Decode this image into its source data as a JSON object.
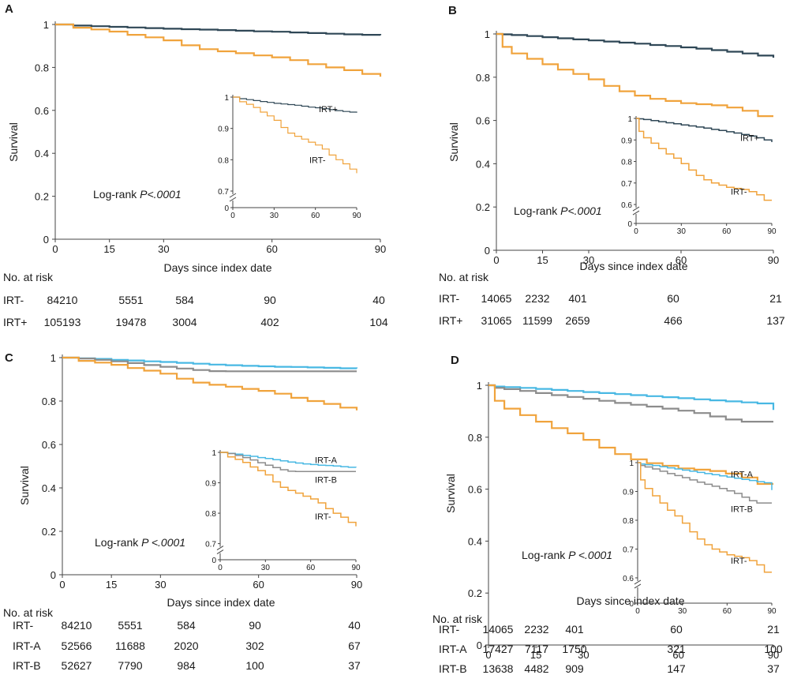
{
  "colors": {
    "irt_minus": "#f0a33c",
    "irt_plus": "#2f4756",
    "irt_a": "#48b8e3",
    "irt_b": "#8c8c8c",
    "axis": "#444444"
  },
  "axis_labels": {
    "xlabel": "Days since index date",
    "ylabel": "Survival"
  },
  "panels": [
    {
      "label": "A",
      "logrank_text": "Log-rank ",
      "logrank_p": "P<.0001",
      "risk_header": "No. at risk",
      "risk_table": [
        {
          "label": "IRT-",
          "values": [
            "84210",
            "5551",
            "584",
            "90",
            "40"
          ]
        },
        {
          "label": "IRT+",
          "values": [
            "105193",
            "19478",
            "3004",
            "402",
            "104"
          ]
        }
      ]
    },
    {
      "label": "B",
      "logrank_text": "Log-rank ",
      "logrank_p": "P<.0001",
      "risk_header": "No. at risk",
      "risk_table": [
        {
          "label": "IRT-",
          "values": [
            "14065",
            "2232",
            "401",
            "60",
            "21"
          ]
        },
        {
          "label": "IRT+",
          "values": [
            "31065",
            "11599",
            "2659",
            "466",
            "137"
          ]
        }
      ]
    },
    {
      "label": "C",
      "logrank_text": "Log-rank ",
      "logrank_p": "P <.0001",
      "risk_header": "No. at risk",
      "risk_table": [
        {
          "label": "IRT-",
          "values": [
            "84210",
            "5551",
            "584",
            "90",
            "40"
          ]
        },
        {
          "label": "IRT-A",
          "values": [
            "52566",
            "11688",
            "2020",
            "302",
            "67"
          ]
        },
        {
          "label": "IRT-B",
          "values": [
            "52627",
            "7790",
            "984",
            "100",
            "37"
          ]
        }
      ]
    },
    {
      "label": "D",
      "logrank_text": "Log-rank ",
      "logrank_p": "P <.0001",
      "risk_header": "No. at risk",
      "risk_table": [
        {
          "label": "IRT-",
          "values": [
            "14065",
            "2232",
            "401",
            "60",
            "21"
          ]
        },
        {
          "label": "IRT-A",
          "values": [
            "17427",
            "7117",
            "1750",
            "321",
            "100"
          ]
        },
        {
          "label": "IRT-B",
          "values": [
            "13638",
            "4482",
            "909",
            "147",
            "37"
          ]
        }
      ]
    }
  ],
  "chart_data": [
    {
      "panel": "A",
      "type": "line",
      "title": "",
      "xlabel": "Days since index date",
      "ylabel": "Survival",
      "xlim": [
        0,
        90
      ],
      "ylim": [
        0,
        1.0
      ],
      "xticks": [
        0,
        15,
        30,
        60,
        90
      ],
      "yticks": [
        0.0,
        0.2,
        0.4,
        0.6,
        0.8,
        1.0
      ],
      "x": [
        0,
        5,
        10,
        15,
        20,
        25,
        30,
        35,
        40,
        45,
        50,
        55,
        60,
        65,
        70,
        75,
        80,
        85,
        90
      ],
      "series": [
        {
          "name": "IRT+",
          "color_key": "irt_plus",
          "values": [
            1.0,
            0.995,
            0.992,
            0.989,
            0.986,
            0.983,
            0.98,
            0.978,
            0.976,
            0.974,
            0.971,
            0.968,
            0.966,
            0.963,
            0.96,
            0.957,
            0.954,
            0.952,
            0.95
          ]
        },
        {
          "name": "IRT-",
          "color_key": "irt_minus",
          "values": [
            1.0,
            0.985,
            0.977,
            0.967,
            0.952,
            0.94,
            0.926,
            0.903,
            0.885,
            0.875,
            0.866,
            0.856,
            0.847,
            0.834,
            0.815,
            0.8,
            0.787,
            0.77,
            0.757
          ]
        }
      ],
      "inset": {
        "xlim": [
          0,
          90
        ],
        "ylim_display": [
          0.7,
          1.0
        ],
        "yticks": [
          0.0,
          0.7,
          0.8,
          0.9,
          1.0
        ],
        "xticks": [
          0,
          30,
          60,
          90
        ],
        "legend_labels": [
          "IRT+",
          "IRT-"
        ]
      }
    },
    {
      "panel": "B",
      "type": "line",
      "title": "",
      "xlabel": "Days since index date",
      "ylabel": "Survival",
      "xlim": [
        0,
        90
      ],
      "ylim": [
        0,
        1.0
      ],
      "xticks": [
        0,
        15,
        30,
        60,
        90
      ],
      "yticks": [
        0.0,
        0.2,
        0.4,
        0.6,
        0.8,
        1.0
      ],
      "x": [
        0,
        2,
        5,
        10,
        15,
        20,
        25,
        30,
        35,
        40,
        45,
        50,
        55,
        60,
        65,
        70,
        75,
        80,
        85,
        90
      ],
      "series": [
        {
          "name": "IRT+",
          "color_key": "irt_plus",
          "values": [
            1.0,
            0.998,
            0.995,
            0.99,
            0.985,
            0.98,
            0.975,
            0.97,
            0.965,
            0.96,
            0.955,
            0.949,
            0.944,
            0.938,
            0.932,
            0.925,
            0.918,
            0.91,
            0.9,
            0.89
          ]
        },
        {
          "name": "IRT-",
          "color_key": "irt_minus",
          "values": [
            1.0,
            0.94,
            0.91,
            0.885,
            0.86,
            0.835,
            0.815,
            0.79,
            0.76,
            0.735,
            0.715,
            0.7,
            0.69,
            0.68,
            0.675,
            0.67,
            0.66,
            0.645,
            0.62,
            0.62
          ]
        }
      ],
      "inset": {
        "xlim": [
          0,
          90
        ],
        "ylim_display": [
          0.6,
          1.0
        ],
        "yticks": [
          0.0,
          0.6,
          0.7,
          0.8,
          0.9,
          1.0
        ],
        "xticks": [
          0,
          30,
          60,
          90
        ],
        "legend_labels": [
          "IRT+",
          "IRT-"
        ]
      }
    },
    {
      "panel": "C",
      "type": "line",
      "title": "",
      "xlabel": "Days since index date",
      "ylabel": "Survival",
      "xlim": [
        0,
        90
      ],
      "ylim": [
        0,
        1.0
      ],
      "xticks": [
        0,
        15,
        30,
        60,
        90
      ],
      "yticks": [
        0.0,
        0.2,
        0.4,
        0.6,
        0.8,
        1.0
      ],
      "x": [
        0,
        5,
        10,
        15,
        20,
        25,
        30,
        35,
        40,
        45,
        50,
        55,
        60,
        65,
        70,
        75,
        80,
        85,
        90
      ],
      "series": [
        {
          "name": "IRT-A",
          "color_key": "irt_a",
          "values": [
            1.0,
            0.997,
            0.994,
            0.99,
            0.987,
            0.983,
            0.98,
            0.976,
            0.972,
            0.968,
            0.965,
            0.962,
            0.96,
            0.958,
            0.957,
            0.955,
            0.953,
            0.951,
            0.95
          ]
        },
        {
          "name": "IRT-B",
          "color_key": "irt_b",
          "values": [
            1.0,
            0.996,
            0.99,
            0.983,
            0.975,
            0.966,
            0.958,
            0.95,
            0.943,
            0.938,
            0.937,
            0.937,
            0.937,
            0.937,
            0.937,
            0.937,
            0.937,
            0.937,
            0.937
          ]
        },
        {
          "name": "IRT-",
          "color_key": "irt_minus",
          "values": [
            1.0,
            0.985,
            0.977,
            0.967,
            0.952,
            0.94,
            0.926,
            0.903,
            0.885,
            0.875,
            0.866,
            0.856,
            0.847,
            0.834,
            0.815,
            0.8,
            0.787,
            0.77,
            0.757
          ]
        }
      ],
      "inset": {
        "xlim": [
          0,
          90
        ],
        "ylim_display": [
          0.7,
          1.0
        ],
        "yticks": [
          0.0,
          0.7,
          0.8,
          0.9,
          1.0
        ],
        "xticks": [
          0,
          30,
          60,
          90
        ],
        "legend_labels": [
          "IRT-A",
          "IRT-B",
          "IRT-"
        ]
      }
    },
    {
      "panel": "D",
      "type": "line",
      "title": "",
      "xlabel": "Days since index date",
      "ylabel": "Survival",
      "xlim": [
        0,
        90
      ],
      "ylim": [
        0,
        1.0
      ],
      "xticks": [
        0,
        15,
        30,
        60,
        90
      ],
      "yticks": [
        0.0,
        0.2,
        0.4,
        0.6,
        0.8,
        1.0
      ],
      "x": [
        0,
        2,
        5,
        10,
        15,
        20,
        25,
        30,
        35,
        40,
        45,
        50,
        55,
        60,
        65,
        70,
        75,
        80,
        85,
        90
      ],
      "series": [
        {
          "name": "IRT-A",
          "color_key": "irt_a",
          "values": [
            1.0,
            0.995,
            0.993,
            0.99,
            0.986,
            0.982,
            0.978,
            0.974,
            0.97,
            0.966,
            0.962,
            0.958,
            0.954,
            0.95,
            0.946,
            0.942,
            0.938,
            0.934,
            0.93,
            0.905
          ]
        },
        {
          "name": "IRT-B",
          "color_key": "irt_b",
          "values": [
            1.0,
            0.99,
            0.985,
            0.978,
            0.97,
            0.962,
            0.955,
            0.948,
            0.94,
            0.932,
            0.925,
            0.918,
            0.91,
            0.902,
            0.893,
            0.88,
            0.868,
            0.86,
            0.86,
            0.86
          ]
        },
        {
          "name": "IRT-",
          "color_key": "irt_minus",
          "values": [
            1.0,
            0.94,
            0.91,
            0.885,
            0.86,
            0.835,
            0.815,
            0.79,
            0.76,
            0.735,
            0.715,
            0.7,
            0.69,
            0.68,
            0.675,
            0.67,
            0.66,
            0.645,
            0.62,
            0.62
          ]
        }
      ],
      "inset": {
        "xlim": [
          0,
          90
        ],
        "ylim_display": [
          0.6,
          1.0
        ],
        "yticks": [
          0.0,
          0.6,
          0.7,
          0.8,
          0.9,
          1.0
        ],
        "xticks": [
          0,
          30,
          60,
          90
        ],
        "legend_labels": [
          "IRT-A",
          "IRT-B",
          "IRT-"
        ]
      }
    }
  ]
}
